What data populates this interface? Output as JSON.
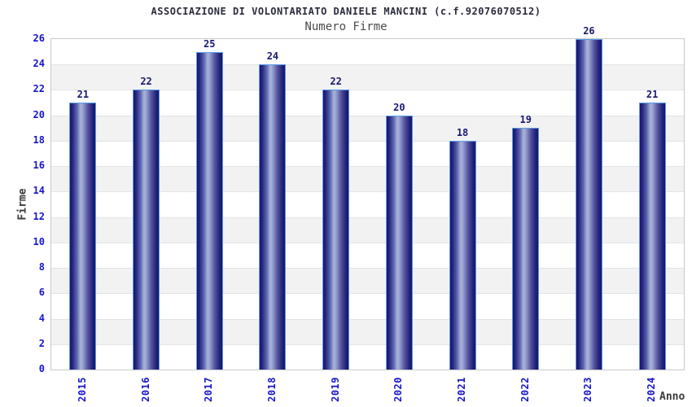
{
  "header": {
    "title": "ASSOCIAZIONE DI VOLONTARIATO DANIELE MANCINI (c.f.92076070512)",
    "subtitle": "Numero Firme"
  },
  "chart_data": {
    "type": "bar",
    "title": "ASSOCIAZIONE DI VOLONTARIATO DANIELE MANCINI (c.f.92076070512)",
    "subtitle": "Numero Firme",
    "categories": [
      "2015",
      "2016",
      "2017",
      "2018",
      "2019",
      "2020",
      "2021",
      "2022",
      "2023",
      "2024"
    ],
    "values": [
      21,
      22,
      25,
      24,
      22,
      20,
      18,
      19,
      26,
      21
    ],
    "xlabel": "Anno",
    "ylabel": "Firme",
    "ylim": [
      0,
      26
    ],
    "ytick_step": 2,
    "yticks": [
      0,
      2,
      4,
      6,
      8,
      10,
      12,
      14,
      16,
      18,
      20,
      22,
      24,
      26
    ],
    "grid": "horizontal-bands-alternating",
    "legend": "none",
    "x_tick_label_rotation_deg": 90,
    "colors": {
      "title": "#2b2b3d",
      "subtitle": "#4a4a4a",
      "tick_label": "#1616cc",
      "value_label": "#191970",
      "axis_title": "#3a3a3a",
      "bar_dark": "#15156b",
      "bar_highlight": "#aab3dc",
      "bar_border": "#5b9ce6",
      "band_gray": "#f2f2f2",
      "gridline": "#e3e3e3",
      "plot_border": "#c9c9c9",
      "background": "#ffffff"
    }
  }
}
